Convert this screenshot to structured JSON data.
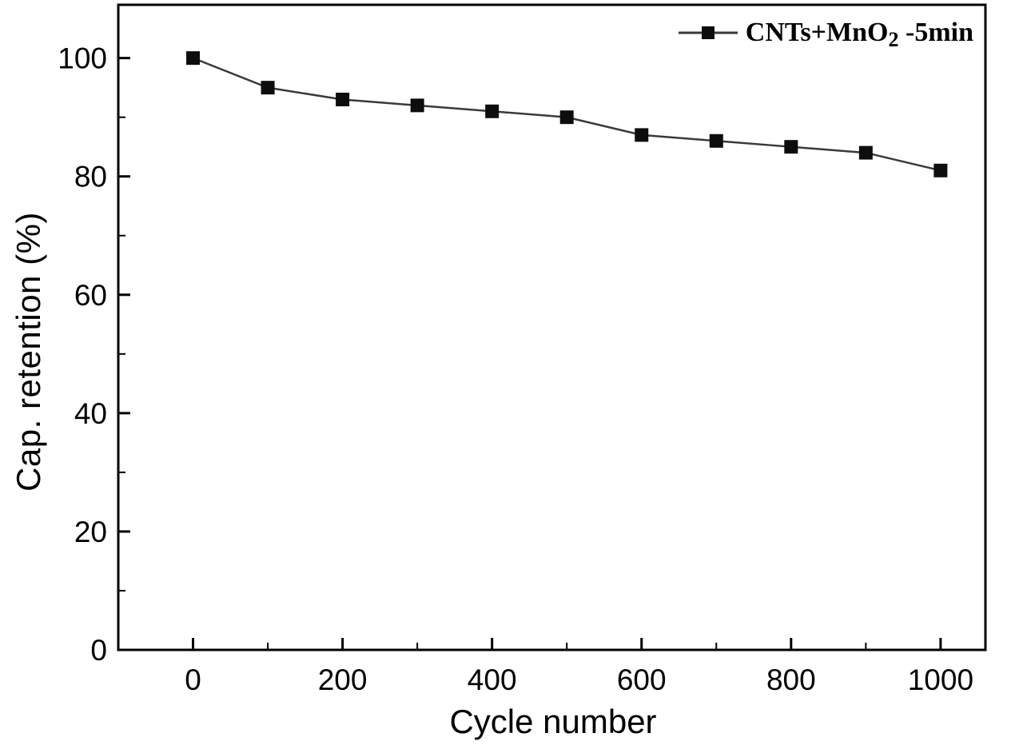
{
  "figure": {
    "background": "#ffffff",
    "axis_color": "#000000"
  },
  "chart_data": {
    "type": "line",
    "title": "",
    "xlabel": "Cycle number",
    "ylabel": "Cap. retention (%)",
    "xlim": [
      -100,
      1060
    ],
    "ylim": [
      0,
      109
    ],
    "x_major_ticks": [
      0,
      200,
      400,
      600,
      800,
      1000
    ],
    "x_minor_step": 100,
    "y_major_ticks": [
      0,
      20,
      40,
      60,
      80,
      100
    ],
    "y_minor_step": 10,
    "grid": false,
    "legend_position": "top-right",
    "series": [
      {
        "name": "CNTs+MnO2 -5min",
        "label_parts": {
          "prefix": "CNTs+MnO",
          "subscript": "2",
          "suffix": " -5min"
        },
        "marker": "square",
        "marker_size": 17,
        "color": "#0d0d0d",
        "line_color": "#3a3a3a",
        "x": [
          0,
          100,
          200,
          300,
          400,
          500,
          600,
          700,
          800,
          900,
          1000
        ],
        "y": [
          100,
          95,
          93,
          92,
          91,
          90,
          87,
          86,
          85,
          84,
          81
        ]
      }
    ]
  }
}
